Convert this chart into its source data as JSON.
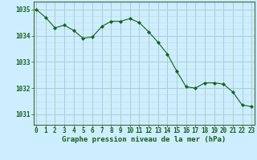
{
  "x": [
    0,
    1,
    2,
    3,
    4,
    5,
    6,
    7,
    8,
    9,
    10,
    11,
    12,
    13,
    14,
    15,
    16,
    17,
    18,
    19,
    20,
    21,
    22,
    23
  ],
  "y": [
    1035.0,
    1034.7,
    1034.3,
    1034.4,
    1034.2,
    1033.9,
    1033.95,
    1034.35,
    1034.55,
    1034.55,
    1034.65,
    1034.5,
    1034.15,
    1033.75,
    1033.3,
    1032.65,
    1032.05,
    1032.0,
    1032.2,
    1032.2,
    1032.15,
    1031.85,
    1031.35,
    1031.3
  ],
  "line_color": "#1a5c1a",
  "marker": "D",
  "marker_size": 2.2,
  "bg_color": "#cceeff",
  "grid_color_major": "#aacccc",
  "grid_color_minor": "#bbdddd",
  "ylabel_values": [
    1031,
    1032,
    1033,
    1034,
    1035
  ],
  "xlabel_values": [
    0,
    1,
    2,
    3,
    4,
    5,
    6,
    7,
    8,
    9,
    10,
    11,
    12,
    13,
    14,
    15,
    16,
    17,
    18,
    19,
    20,
    21,
    22,
    23
  ],
  "ylim": [
    1030.6,
    1035.3
  ],
  "xlim": [
    -0.3,
    23.3
  ],
  "title": "Graphe pression niveau de la mer (hPa)",
  "title_color": "#1a5c1a",
  "title_fontsize": 6.5,
  "tick_fontsize": 5.5,
  "axis_color": "#446644",
  "bottom_bar_color": "#1a5c1a",
  "bottom_bar_height": 0.12
}
